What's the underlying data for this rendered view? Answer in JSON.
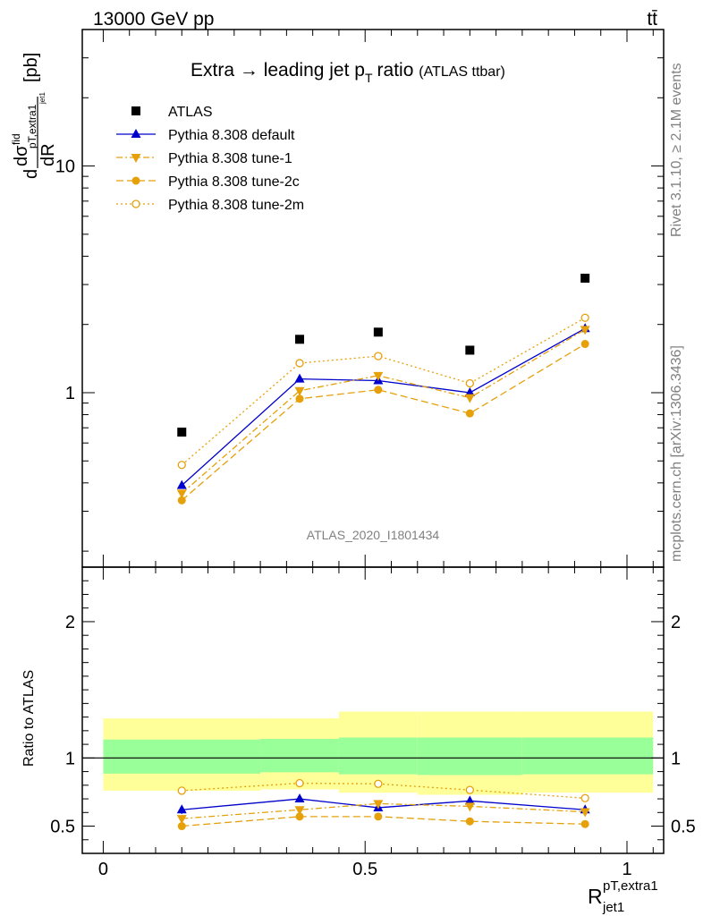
{
  "header": {
    "left": "13000 GeV pp",
    "right": "tt̄"
  },
  "side_text": {
    "rivet": "Rivet 3.1.10, ≥ 2.1M events",
    "mcplots": "mcplots.cern.ch [arXiv:1306.3436]"
  },
  "watermark": "ATLAS_2020_I1801434",
  "chart_data": [
    {
      "type": "scatter",
      "title": "Extra → leading jet pT ratio (ATLAS ttbar)",
      "title_main": "Extra",
      "title_arrow": "→",
      "title_mid": "leading jet p",
      "title_sub": "T",
      "title_end": "ratio",
      "title_small": "(ATLAS ttbar)",
      "ylabel": "dσ^fid_pT,extra1 / dR_jet1 [pb]",
      "ylabel_parts": {
        "d": "d",
        "sigma": "dσ",
        "fid": "fid",
        "sub": "pT,extra1",
        "sub2": "jet1",
        "dR": "dR",
        "unit": "[pb]"
      },
      "yscale": "log",
      "ylim": [
        0.17,
        40
      ],
      "xlim": [
        -0.04,
        1.07
      ],
      "yticks": [
        1,
        10
      ],
      "ytick_labels": [
        "1",
        "10"
      ],
      "legend_placement": "top-left",
      "x": [
        0.15,
        0.375,
        0.525,
        0.7,
        0.92
      ],
      "series": [
        {
          "name": "ATLAS",
          "values": [
            0.67,
            1.72,
            1.85,
            1.54,
            3.2
          ],
          "color": "#000000",
          "marker": "square",
          "line": "none"
        },
        {
          "name": "Pythia 8.308 default",
          "values": [
            0.39,
            1.15,
            1.13,
            1.0,
            1.92
          ],
          "color": "#0000cc",
          "marker": "triangle-up",
          "line": "solid"
        },
        {
          "name": "Pythia 8.308 tune-1",
          "values": [
            0.36,
            1.02,
            1.19,
            0.95,
            1.9
          ],
          "color": "#e6a00a",
          "marker": "triangle-down",
          "line": "dashdot"
        },
        {
          "name": "Pythia 8.308 tune-2c",
          "values": [
            0.335,
            0.94,
            1.03,
            0.81,
            1.64
          ],
          "color": "#e6a00a",
          "marker": "circle-filled",
          "line": "dashed"
        },
        {
          "name": "Pythia 8.308 tune-2m",
          "values": [
            0.48,
            1.35,
            1.45,
            1.1,
            2.14
          ],
          "color": "#e6a00a",
          "marker": "circle-open",
          "line": "dotted"
        }
      ]
    },
    {
      "type": "scatter",
      "ylabel": "Ratio to ATLAS",
      "xlabel": "R^pT,extra1_jet1",
      "xlabel_parts": {
        "R": "R",
        "sup": "pT,extra1",
        "sub": "jet1"
      },
      "ylim": [
        0.3,
        2.4
      ],
      "xlim": [
        -0.04,
        1.07
      ],
      "yticks": [
        0.5,
        1,
        2
      ],
      "ytick_labels": [
        "0.5",
        "1",
        "2"
      ],
      "xticks": [
        0,
        0.5,
        1
      ],
      "xtick_labels": [
        "0",
        "0.5",
        "1"
      ],
      "bins": [
        0,
        0.3,
        0.45,
        0.6,
        0.8,
        1.05
      ],
      "band_green": [
        [
          0.885,
          1.135
        ],
        [
          0.895,
          1.14
        ],
        [
          0.88,
          1.15
        ],
        [
          0.875,
          1.15
        ],
        [
          0.88,
          1.15
        ]
      ],
      "band_yellow": [
        [
          0.76,
          1.29
        ],
        [
          0.77,
          1.29
        ],
        [
          0.745,
          1.34
        ],
        [
          0.73,
          1.34
        ],
        [
          0.745,
          1.34
        ]
      ],
      "x": [
        0.15,
        0.375,
        0.525,
        0.7,
        0.92
      ],
      "series": [
        {
          "name": "Pythia 8.308 default",
          "values": [
            0.62,
            0.7,
            0.635,
            0.685,
            0.62
          ],
          "err": [
            0.03,
            0.025,
            0.02,
            0.02,
            0.015
          ],
          "color": "#0000cc",
          "marker": "triangle-up",
          "line": "solid"
        },
        {
          "name": "Pythia 8.308 tune-1",
          "values": [
            0.555,
            0.62,
            0.665,
            0.645,
            0.605
          ],
          "err": [
            0.025,
            0.02,
            0.02,
            0.025,
            0.015
          ],
          "color": "#e6a00a",
          "marker": "triangle-down",
          "line": "dashdot"
        },
        {
          "name": "Pythia 8.308 tune-2c",
          "values": [
            0.5,
            0.57,
            0.57,
            0.535,
            0.515
          ],
          "err": [
            0.025,
            0.02,
            0.02,
            0.02,
            0.01
          ],
          "color": "#e6a00a",
          "marker": "circle-filled",
          "line": "dashed"
        },
        {
          "name": "Pythia 8.308 tune-2m",
          "values": [
            0.76,
            0.815,
            0.81,
            0.765,
            0.705
          ],
          "err": [
            0.025,
            0.02,
            0.02,
            0.02,
            0.01
          ],
          "color": "#e6a00a",
          "marker": "circle-open",
          "line": "dotted"
        }
      ]
    }
  ]
}
